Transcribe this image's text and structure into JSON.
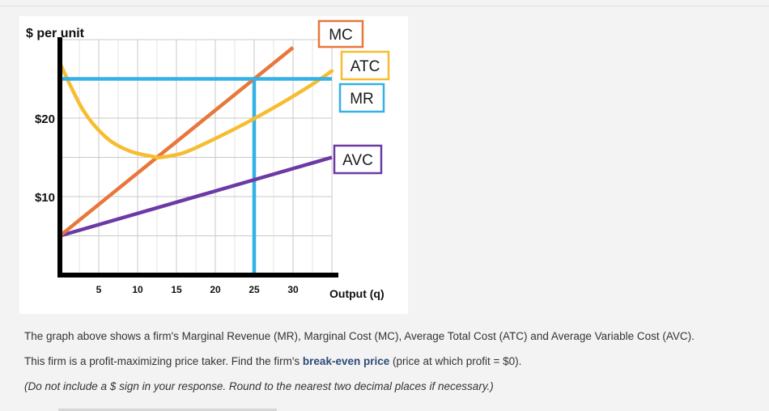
{
  "chart_data": {
    "type": "line",
    "ylabel": "$ per unit",
    "xlabel": "Output (q)",
    "xlim": [
      0,
      35
    ],
    "ylim": [
      0,
      30
    ],
    "x_ticks": [
      5,
      10,
      15,
      20,
      25,
      30
    ],
    "x_tick_labels": [
      "5",
      "10",
      "15",
      "20",
      "25",
      "30"
    ],
    "y_ticks": [
      10,
      20
    ],
    "y_tick_labels": [
      "$10",
      "$20"
    ],
    "grid": true,
    "series": [
      {
        "name": "MC",
        "color": "#e8773b",
        "x": [
          0,
          30
        ],
        "y": [
          5,
          29
        ]
      },
      {
        "name": "ATC",
        "color": "#f6bd30",
        "x": [
          0,
          3,
          6,
          9,
          12,
          13,
          16,
          20,
          24,
          28,
          32,
          35
        ],
        "y": [
          27,
          21,
          17.5,
          15.8,
          15.1,
          15,
          15.6,
          17.4,
          19.4,
          21.6,
          24,
          26
        ]
      },
      {
        "name": "MR",
        "color": "#34b1e6",
        "x": [
          0,
          35
        ],
        "y": [
          25,
          25
        ]
      },
      {
        "name": "AVC",
        "color": "#6b3aa5",
        "x": [
          0,
          35
        ],
        "y": [
          5,
          15
        ]
      }
    ],
    "reference_lines": [
      {
        "type": "vertical",
        "x": 25,
        "y_from": 0,
        "y_to": 25,
        "color": "#34b1e6"
      }
    ]
  },
  "question": {
    "line1": "The graph above shows a firm's Marginal Revenue (MR), Marginal Cost (MC), Average Total Cost (ATC) and Average Variable Cost (AVC).",
    "line2_before": "This firm is a profit-maximizing price taker. Find the firm's ",
    "line2_bold": "break-even price",
    "line2_after": " (price at which profit = $0).",
    "line3": "(Do not include a $ sign in your response. Round to the nearest two decimal places if necessary.)"
  }
}
